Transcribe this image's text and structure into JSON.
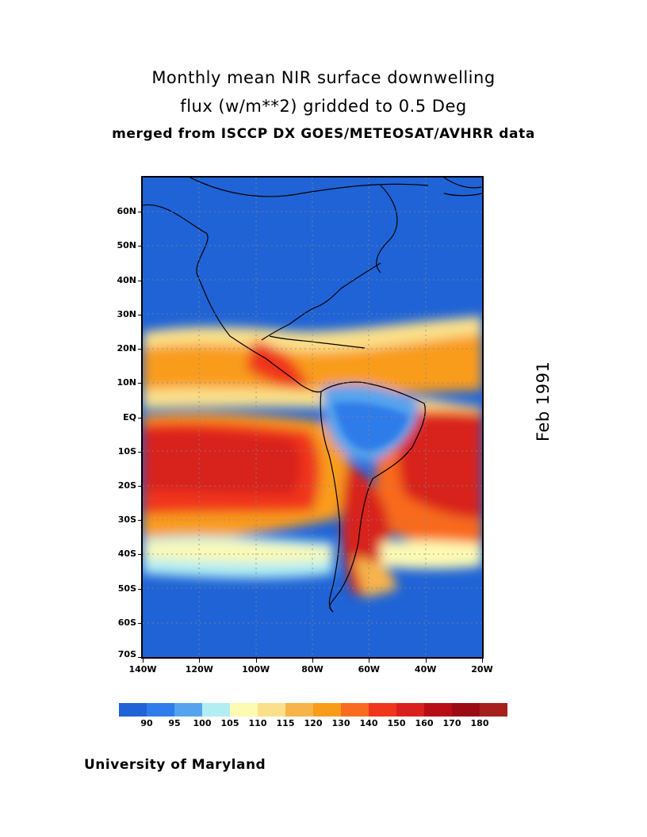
{
  "title": {
    "line1": "Monthly mean NIR surface downwelling",
    "line2": "flux (w/m**2) gridded to 0.5 Deg",
    "line3": "merged from ISCCP DX GOES/METEOSAT/AVHRR data"
  },
  "date_label": "Feb 1991",
  "footer": "University of Maryland",
  "map": {
    "lat_range": [
      -70,
      70
    ],
    "lon_range": [
      -140,
      -20
    ],
    "lat_labels": [
      "60N",
      "50N",
      "40N",
      "30N",
      "20N",
      "10N",
      "EQ",
      "10S",
      "20S",
      "30S",
      "40S",
      "50S",
      "60S",
      "70S"
    ],
    "lon_labels": [
      "140W",
      "120W",
      "100W",
      "80W",
      "60W",
      "40W",
      "20W"
    ],
    "grid_lines": "dotted"
  },
  "colorbar": {
    "labels": [
      "90",
      "95",
      "100",
      "105",
      "110",
      "115",
      "120",
      "130",
      "140",
      "150",
      "160",
      "170",
      "180"
    ],
    "colors": [
      "#1f63d6",
      "#2f7cea",
      "#55a3ee",
      "#b2edf2",
      "#fdfab3",
      "#fae08b",
      "#f6b44b",
      "#f99c1a",
      "#f96b1f",
      "#f0361b",
      "#d8201c",
      "#b90d16",
      "#9c0a14",
      "#a6201e"
    ]
  }
}
